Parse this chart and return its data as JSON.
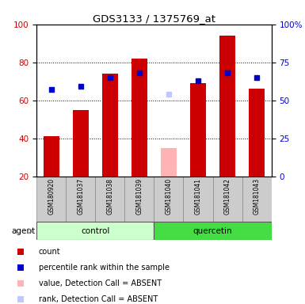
{
  "title": "GDS3133 / 1375769_at",
  "samples": [
    "GSM180920",
    "GSM181037",
    "GSM181038",
    "GSM181039",
    "GSM181040",
    "GSM181041",
    "GSM181042",
    "GSM181043"
  ],
  "count_values": [
    41,
    55,
    74,
    82,
    null,
    69,
    94,
    66
  ],
  "percentile_rank": [
    57,
    59,
    65,
    68,
    null,
    63,
    68,
    65
  ],
  "absent_value": [
    null,
    null,
    null,
    null,
    35,
    null,
    null,
    null
  ],
  "absent_rank": [
    null,
    null,
    null,
    null,
    54,
    null,
    null,
    null
  ],
  "count_color": "#cc0000",
  "rank_color": "#0000cc",
  "absent_value_color": "#ffb3b3",
  "absent_rank_color": "#c0c8ff",
  "control_bg": "#ccffcc",
  "quercetin_bg": "#44dd44",
  "sample_bg": "#cccccc",
  "ylim_left": [
    20,
    100
  ],
  "ylim_right": [
    0,
    100
  ],
  "yticks_left": [
    20,
    40,
    60,
    80,
    100
  ],
  "yticks_right": [
    0,
    25,
    50,
    75,
    100
  ],
  "ytick_labels_right": [
    "0",
    "25",
    "50",
    "75",
    "100%"
  ],
  "bar_width": 0.55,
  "legend_items": [
    {
      "label": "count",
      "color": "#cc0000"
    },
    {
      "label": "percentile rank within the sample",
      "color": "#0000cc"
    },
    {
      "label": "value, Detection Call = ABSENT",
      "color": "#ffb3b3"
    },
    {
      "label": "rank, Detection Call = ABSENT",
      "color": "#c0c8ff"
    }
  ]
}
